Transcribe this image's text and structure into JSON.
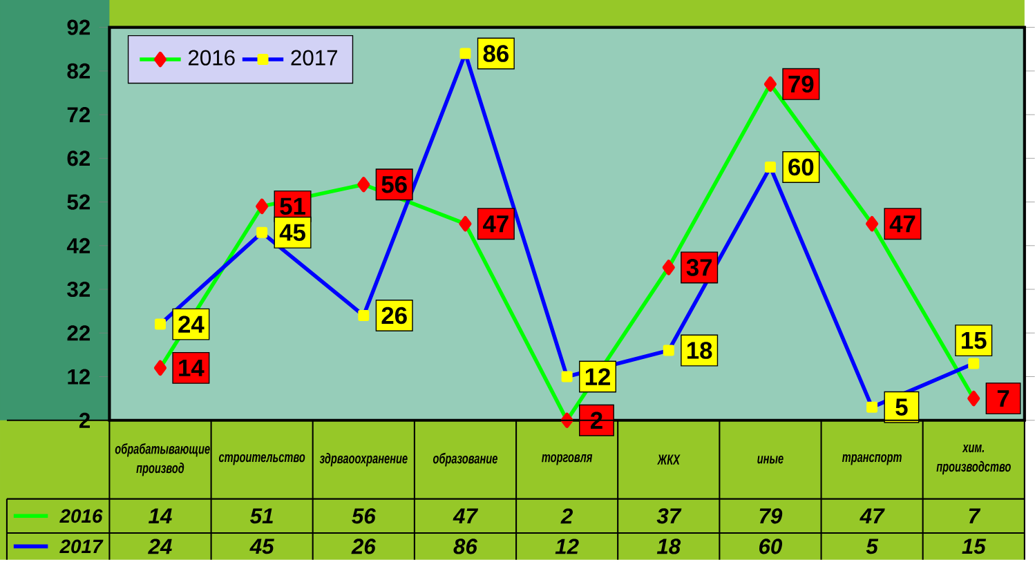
{
  "chart_data": {
    "type": "line",
    "categories": [
      "обрабатывающие производ",
      "строительство",
      "здрваоохранение",
      "образование",
      "торговля",
      "ЖКХ",
      "иные",
      "транспорт",
      "хим. производство"
    ],
    "series": [
      {
        "name": "2016",
        "color": "#00ff00",
        "marker": "diamond",
        "colors": [
          "#ff0000",
          "#ff0000",
          "#ff0000",
          "#ff0000",
          "#ff0000",
          "#ff0000",
          "#ff0000",
          "#ff0000",
          "#ff0000"
        ],
        "values": [
          14,
          51,
          56,
          47,
          2,
          37,
          79,
          47,
          7
        ],
        "value_labels": [
          "14",
          "51",
          "56",
          "47",
          "2",
          "37",
          "79",
          "47",
          "7"
        ]
      },
      {
        "name": "2017",
        "color": "#0000ff",
        "marker": "square",
        "colors": [
          "#ffff00",
          "#ffff00",
          "#ffff00",
          "#ffff00",
          "#ffff00",
          "#ffff00",
          "#ffff00",
          "#ffff00",
          "#ffff00"
        ],
        "values": [
          24,
          45,
          26,
          86,
          12,
          18,
          60,
          5,
          15
        ],
        "value_labels": [
          "24",
          "45",
          "26",
          "86",
          "12",
          "18",
          "60",
          "5",
          "15"
        ]
      }
    ],
    "ylim": [
      2,
      92
    ],
    "yticks": [
      2,
      12,
      22,
      32,
      42,
      52,
      62,
      72,
      82,
      92
    ],
    "legend": "top left",
    "grid": false
  }
}
